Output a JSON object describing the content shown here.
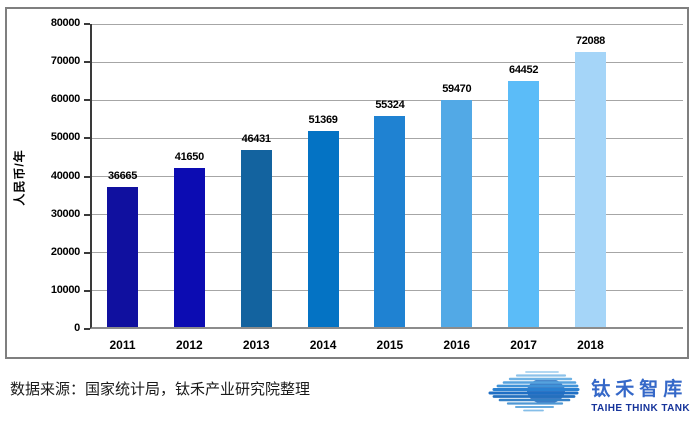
{
  "chart_data": {
    "type": "bar",
    "categories": [
      "2011",
      "2012",
      "2013",
      "2014",
      "2015",
      "2016",
      "2017",
      "2018"
    ],
    "values": [
      36665,
      41650,
      46431,
      51369,
      55324,
      59470,
      64452,
      72088
    ],
    "bar_colors": [
      "#10109F",
      "#0C0CB2",
      "#13639F",
      "#0473C4",
      "#1F82D2",
      "#52A9E6",
      "#5BBCF8",
      "#A5D5F8"
    ],
    "title": "",
    "xlabel": "",
    "ylabel": "人民币/年",
    "ylim": [
      0,
      80000
    ],
    "ytick_step": 10000,
    "grid": true,
    "legend": "none",
    "data_labels": true
  },
  "source_note": "数据来源：国家统计局，钛禾产业研究院整理",
  "logo": {
    "cn": "钛禾智库",
    "en": "TAIHE THINK TANK",
    "swoosh_icon": "speed-lines-swoosh"
  },
  "colors": {
    "frame_border": "#7f7f7f",
    "gridline": "#a6a6a6",
    "axis": "#3a3a3a",
    "logo_cn": "#3568c8",
    "logo_en": "#16349b",
    "text": "#000000"
  }
}
